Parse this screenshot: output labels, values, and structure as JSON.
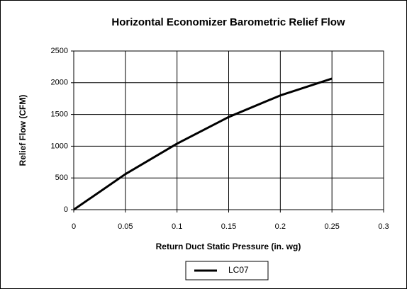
{
  "chart_data": {
    "type": "line",
    "title": "Horizontal Economizer Barometric Relief Flow",
    "x_label": "Return Duct Static Pressure (in. wg)",
    "y_label": "Relief Flow (CFM)",
    "x": [
      0,
      0.05,
      0.1,
      0.15,
      0.2,
      0.25
    ],
    "series": [
      {
        "name": "LC07",
        "color": "#000000",
        "values": [
          0,
          560,
          1040,
          1460,
          1800,
          2065
        ]
      }
    ],
    "xlim": [
      0,
      0.3
    ],
    "xticks": [
      0,
      0.05,
      0.1,
      0.15,
      0.2,
      0.25,
      0.3
    ],
    "ylim": [
      0,
      2500
    ],
    "yticks": [
      0,
      500,
      1000,
      1500,
      2000,
      2500
    ],
    "grid": true,
    "legend": "bottom"
  }
}
